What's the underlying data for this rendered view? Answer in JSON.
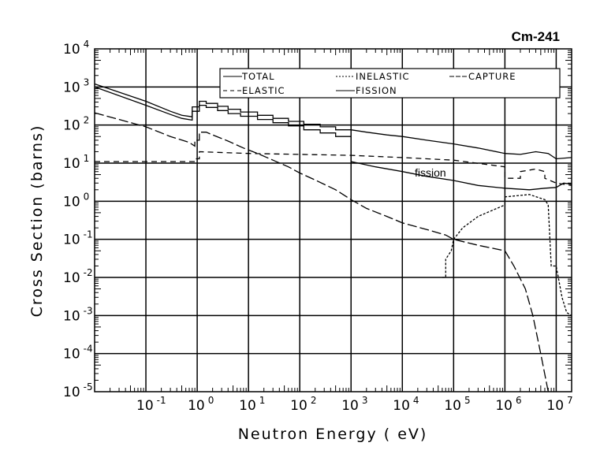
{
  "chart_data": {
    "type": "line",
    "title": "Cm-241",
    "xlabel": "Neutron Energy ( eV)",
    "ylabel": "Cross Section (barns)",
    "xscale": "log",
    "yscale": "log",
    "xlim": [
      0.01,
      20000000
    ],
    "ylim": [
      1e-05,
      10000
    ],
    "grid": true,
    "legend_position": "top-right",
    "x_tick_labels": [
      {
        "base": "10",
        "exp": "-1",
        "value": 0.1
      },
      {
        "base": "10",
        "exp": "0",
        "value": 1
      },
      {
        "base": "10",
        "exp": "1",
        "value": 10
      },
      {
        "base": "10",
        "exp": "2",
        "value": 100
      },
      {
        "base": "10",
        "exp": "3",
        "value": 1000
      },
      {
        "base": "10",
        "exp": "4",
        "value": 10000
      },
      {
        "base": "10",
        "exp": "5",
        "value": 100000
      },
      {
        "base": "10",
        "exp": "6",
        "value": 1000000
      },
      {
        "base": "10",
        "exp": "7",
        "value": 10000000
      }
    ],
    "y_tick_labels": [
      {
        "base": "10",
        "exp": "4",
        "value": 10000
      },
      {
        "base": "10",
        "exp": "3",
        "value": 1000
      },
      {
        "base": "10",
        "exp": "2",
        "value": 100
      },
      {
        "base": "10",
        "exp": "1",
        "value": 10
      },
      {
        "base": "10",
        "exp": "0",
        "value": 1
      },
      {
        "base": "10",
        "exp": "-1",
        "value": 0.1
      },
      {
        "base": "10",
        "exp": "-2",
        "value": 0.01
      },
      {
        "base": "10",
        "exp": "-3",
        "value": 0.001
      },
      {
        "base": "10",
        "exp": "-4",
        "value": 0.0001
      },
      {
        "base": "10",
        "exp": "-5",
        "value": 1e-05
      }
    ],
    "annotations": [
      {
        "text": "fission",
        "x": 30000,
        "y": 10
      }
    ],
    "series": [
      {
        "name": "TOTAL",
        "style": "solid",
        "points": [
          [
            0.01,
            1200
          ],
          [
            0.1,
            420
          ],
          [
            0.3,
            230
          ],
          [
            0.5,
            180
          ],
          [
            0.8,
            165
          ],
          [
            0.8,
            300
          ],
          [
            1.1,
            300
          ],
          [
            1.1,
            420
          ],
          [
            1.5,
            420
          ],
          [
            1.5,
            370
          ],
          [
            2.5,
            370
          ],
          [
            2.5,
            310
          ],
          [
            4,
            310
          ],
          [
            4,
            260
          ],
          [
            7,
            260
          ],
          [
            7,
            220
          ],
          [
            15,
            220
          ],
          [
            15,
            180
          ],
          [
            30,
            180
          ],
          [
            30,
            150
          ],
          [
            60,
            150
          ],
          [
            60,
            125
          ],
          [
            120,
            125
          ],
          [
            120,
            105
          ],
          [
            250,
            105
          ],
          [
            250,
            90
          ],
          [
            500,
            90
          ],
          [
            500,
            75
          ],
          [
            1000,
            75
          ],
          [
            2000,
            65
          ],
          [
            5000,
            55
          ],
          [
            10000,
            50
          ],
          [
            30000,
            40
          ],
          [
            100000,
            32
          ],
          [
            300000,
            25
          ],
          [
            1000000,
            18
          ],
          [
            2000000,
            17
          ],
          [
            4000000,
            20
          ],
          [
            7000000,
            18
          ],
          [
            10000000,
            13
          ],
          [
            20000000,
            14
          ]
        ]
      },
      {
        "name": "FISSION",
        "style": "solid",
        "points": [
          [
            0.01,
            1000
          ],
          [
            0.1,
            330
          ],
          [
            0.3,
            190
          ],
          [
            0.5,
            150
          ],
          [
            0.8,
            135
          ],
          [
            0.8,
            230
          ],
          [
            1.1,
            230
          ],
          [
            1.1,
            330
          ],
          [
            1.5,
            330
          ],
          [
            1.5,
            290
          ],
          [
            2.5,
            290
          ],
          [
            2.5,
            240
          ],
          [
            4,
            240
          ],
          [
            4,
            200
          ],
          [
            7,
            200
          ],
          [
            7,
            170
          ],
          [
            15,
            170
          ],
          [
            15,
            140
          ],
          [
            30,
            140
          ],
          [
            30,
            115
          ],
          [
            60,
            115
          ],
          [
            60,
            95
          ],
          [
            120,
            95
          ],
          [
            120,
            75
          ],
          [
            250,
            75
          ],
          [
            250,
            62
          ],
          [
            500,
            62
          ],
          [
            500,
            50
          ],
          [
            1000,
            50
          ],
          [
            1000,
            11
          ],
          [
            3000,
            8
          ],
          [
            10000,
            6
          ],
          [
            30000,
            4.5
          ],
          [
            100000,
            3.5
          ],
          [
            300000,
            2.6
          ],
          [
            1000000,
            2.2
          ],
          [
            3000000,
            2
          ],
          [
            6000000,
            2.2
          ],
          [
            10000000,
            2.3
          ],
          [
            14000000,
            3
          ],
          [
            20000000,
            2.8
          ]
        ]
      },
      {
        "name": "ELASTIC",
        "style": "dashed",
        "points": [
          [
            0.01,
            11
          ],
          [
            0.9,
            11
          ],
          [
            0.9,
            13
          ],
          [
            1.1,
            13
          ],
          [
            1.1,
            20
          ],
          [
            10,
            18
          ],
          [
            100,
            17
          ],
          [
            1000,
            16
          ],
          [
            10000,
            14
          ],
          [
            100000,
            12
          ],
          [
            1000000,
            8
          ],
          [
            1000000,
            4
          ],
          [
            2000000,
            4
          ],
          [
            2000000,
            6
          ],
          [
            4000000,
            7
          ],
          [
            6000000,
            6
          ],
          [
            6000000,
            4
          ],
          [
            10000000,
            3
          ],
          [
            20000000,
            2.6
          ]
        ]
      },
      {
        "name": "CAPTURE",
        "style": "longdash",
        "points": [
          [
            0.01,
            210
          ],
          [
            0.1,
            90
          ],
          [
            0.3,
            50
          ],
          [
            0.7,
            35
          ],
          [
            0.9,
            28
          ],
          [
            0.9,
            40
          ],
          [
            1.1,
            40
          ],
          [
            1.1,
            65
          ],
          [
            1.5,
            65
          ],
          [
            2,
            55
          ],
          [
            4,
            38
          ],
          [
            8,
            25
          ],
          [
            15,
            18
          ],
          [
            30,
            12
          ],
          [
            60,
            8
          ],
          [
            100,
            5.5
          ],
          [
            200,
            3.6
          ],
          [
            500,
            2
          ],
          [
            1000,
            1.1
          ],
          [
            2000,
            0.65
          ],
          [
            5000,
            0.4
          ],
          [
            10000,
            0.27
          ],
          [
            30000,
            0.18
          ],
          [
            70000,
            0.13
          ],
          [
            100000,
            0.1
          ],
          [
            300000,
            0.07
          ],
          [
            1000000,
            0.05
          ],
          [
            1500000,
            0.02
          ],
          [
            2500000,
            0.005
          ],
          [
            3500000,
            0.001
          ],
          [
            5000000,
            0.0001
          ],
          [
            7000000,
            1e-05
          ]
        ]
      },
      {
        "name": "INELASTIC",
        "style": "dotted",
        "points": [
          [
            60000,
            0.01
          ],
          [
            70000,
            0.01
          ],
          [
            70000,
            0.03
          ],
          [
            90000,
            0.05
          ],
          [
            100000,
            0.1
          ],
          [
            150000,
            0.2
          ],
          [
            300000,
            0.4
          ],
          [
            1000000,
            0.8
          ],
          [
            1000000,
            1.3
          ],
          [
            3000000,
            1.5
          ],
          [
            6000000,
            1.1
          ],
          [
            7000000,
            0.8
          ],
          [
            8000000,
            0.02
          ],
          [
            10000000,
            0.02
          ],
          [
            11000000,
            0.01
          ],
          [
            13000000,
            0.003
          ],
          [
            16000000,
            0.0012
          ],
          [
            20000000,
            0.001
          ]
        ]
      }
    ]
  },
  "legend": {
    "total": "TOTAL",
    "inelastic": "INELASTIC",
    "capture": "CAPTURE",
    "elastic": "ELASTIC",
    "fission": "FISSION"
  }
}
